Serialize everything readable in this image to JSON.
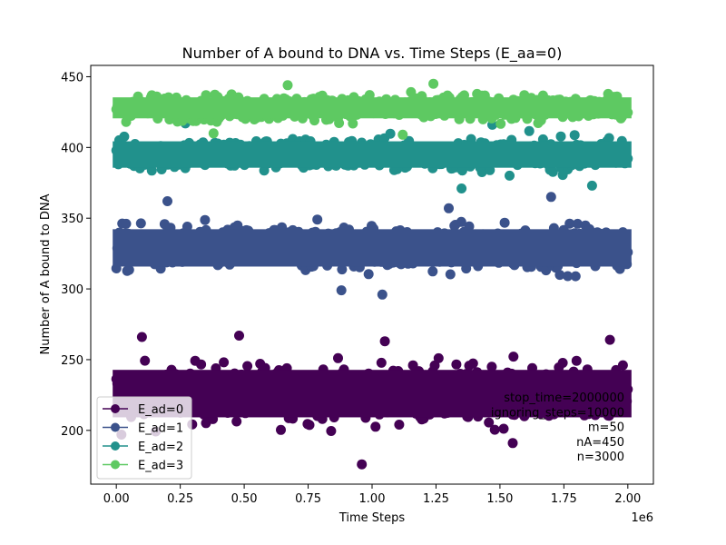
{
  "chart_data": {
    "type": "scatter",
    "title": "Number of A bound to DNA vs. Time Steps (E_aa=0)",
    "xlabel": "Time Steps",
    "ylabel": "Number of A bound to DNA",
    "x_scale_label": "1e6",
    "xlim": [
      -0.1,
      2.1
    ],
    "ylim": [
      162,
      458
    ],
    "x_ticks": [
      0.0,
      0.25,
      0.5,
      0.75,
      1.0,
      1.25,
      1.5,
      1.75,
      2.0
    ],
    "x_tick_labels": [
      "0.00",
      "0.25",
      "0.50",
      "0.75",
      "1.00",
      "1.25",
      "1.50",
      "1.75",
      "2.00"
    ],
    "y_ticks": [
      200,
      250,
      300,
      350,
      400,
      450
    ],
    "y_tick_labels": [
      "200",
      "250",
      "300",
      "350",
      "400",
      "450"
    ],
    "x_range_data": [
      0.0,
      2.0
    ],
    "grid": false,
    "legend_position": "lower-left",
    "series": [
      {
        "name": "E_ad=0",
        "color": "#440154",
        "mean": 226,
        "core_band": [
          195,
          256
        ],
        "outliers": [
          [
            0.1,
            266
          ],
          [
            0.48,
            267
          ],
          [
            0.96,
            176
          ],
          [
            1.05,
            263
          ],
          [
            1.93,
            264
          ],
          [
            0.02,
            197
          ],
          [
            1.55,
            191
          ]
        ]
      },
      {
        "name": "E_ad=1",
        "color": "#3b528b",
        "mean": 329,
        "core_band": [
          304,
          352
        ],
        "outliers": [
          [
            0.2,
            362
          ],
          [
            1.04,
            296
          ],
          [
            1.7,
            365
          ],
          [
            0.88,
            299
          ],
          [
            1.3,
            357
          ]
        ]
      },
      {
        "name": "E_ad=2",
        "color": "#21918c",
        "mean": 395,
        "core_band": [
          378,
          412
        ],
        "outliers": [
          [
            1.35,
            371
          ],
          [
            1.47,
            416
          ],
          [
            0.27,
            417
          ],
          [
            1.86,
            373
          ]
        ]
      },
      {
        "name": "E_ad=3",
        "color": "#5ec962",
        "mean": 428,
        "core_band": [
          413,
          440
        ],
        "outliers": [
          [
            1.24,
            445
          ],
          [
            0.67,
            444
          ],
          [
            1.12,
            409
          ],
          [
            0.38,
            410
          ]
        ]
      }
    ],
    "annotation_lines": [
      "stop_time=2000000",
      "ignoring_steps=10000",
      "m=50",
      "nA=450",
      "n=3000"
    ]
  }
}
